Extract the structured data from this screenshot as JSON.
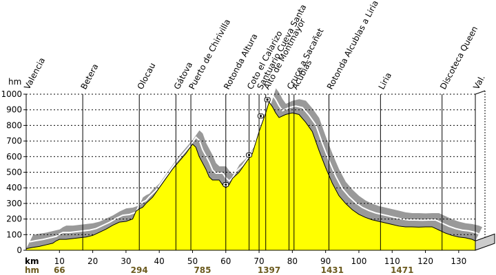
{
  "chart_data": {
    "type": "area",
    "title": "",
    "y_unit": "hm",
    "x_unit": "km",
    "hm_row_label": "hm",
    "ylim": [
      0,
      1000
    ],
    "xlim": [
      0,
      135
    ],
    "y_ticks": [
      0,
      100,
      200,
      300,
      400,
      500,
      600,
      700,
      800,
      900,
      1000
    ],
    "x_ticks": [
      10,
      20,
      30,
      40,
      50,
      60,
      70,
      80,
      90,
      100,
      110,
      120,
      130
    ],
    "grid": true,
    "colors": {
      "fill": "#ffff00",
      "shadow": "#999999",
      "highlight": "#ffffff",
      "line": "#000000",
      "hm_text": "#6b5a1e"
    },
    "profile": [
      [
        0,
        10
      ],
      [
        2,
        18
      ],
      [
        4,
        25
      ],
      [
        6,
        35
      ],
      [
        8,
        45
      ],
      [
        9,
        60
      ],
      [
        10,
        70
      ],
      [
        12,
        70
      ],
      [
        14,
        75
      ],
      [
        16,
        80
      ],
      [
        18,
        85
      ],
      [
        20,
        95
      ],
      [
        22,
        115
      ],
      [
        24,
        135
      ],
      [
        26,
        160
      ],
      [
        28,
        180
      ],
      [
        30,
        185
      ],
      [
        32,
        200
      ],
      [
        33,
        250
      ],
      [
        34,
        265
      ],
      [
        35,
        275
      ],
      [
        36,
        300
      ],
      [
        38,
        340
      ],
      [
        40,
        400
      ],
      [
        42,
        460
      ],
      [
        44,
        520
      ],
      [
        46,
        570
      ],
      [
        48,
        620
      ],
      [
        50,
        680
      ],
      [
        51,
        660
      ],
      [
        52,
        600
      ],
      [
        54,
        520
      ],
      [
        55,
        470
      ],
      [
        56,
        450
      ],
      [
        58,
        450
      ],
      [
        59,
        420
      ],
      [
        60,
        400
      ],
      [
        61,
        420
      ],
      [
        62,
        460
      ],
      [
        64,
        500
      ],
      [
        66,
        560
      ],
      [
        67,
        590
      ],
      [
        68,
        620
      ],
      [
        70,
        760
      ],
      [
        72,
        880
      ],
      [
        73,
        950
      ],
      [
        74,
        920
      ],
      [
        75,
        880
      ],
      [
        76,
        850
      ],
      [
        78,
        870
      ],
      [
        80,
        880
      ],
      [
        82,
        870
      ],
      [
        84,
        820
      ],
      [
        86,
        760
      ],
      [
        88,
        640
      ],
      [
        90,
        530
      ],
      [
        92,
        430
      ],
      [
        94,
        350
      ],
      [
        96,
        300
      ],
      [
        98,
        260
      ],
      [
        100,
        230
      ],
      [
        102,
        210
      ],
      [
        104,
        195
      ],
      [
        106,
        185
      ],
      [
        108,
        175
      ],
      [
        110,
        165
      ],
      [
        112,
        155
      ],
      [
        114,
        150
      ],
      [
        116,
        150
      ],
      [
        118,
        148
      ],
      [
        120,
        150
      ],
      [
        122,
        150
      ],
      [
        124,
        130
      ],
      [
        126,
        110
      ],
      [
        128,
        95
      ],
      [
        130,
        85
      ],
      [
        132,
        80
      ],
      [
        134,
        70
      ],
      [
        135,
        60
      ]
    ],
    "waypoints": [
      {
        "km": 0,
        "name": "Valencia"
      },
      {
        "km": 17,
        "name": "Betera"
      },
      {
        "km": 34,
        "name": "Olocau"
      },
      {
        "km": 45,
        "name": "Gátova"
      },
      {
        "km": 49.5,
        "name": "Puerto de Chirivilla"
      },
      {
        "km": 60,
        "name": "Rotonda Altura"
      },
      {
        "km": 67,
        "name": "Coto el Calarizo"
      },
      {
        "km": 70,
        "name": "Santuario Cueva Santa"
      },
      {
        "km": 72,
        "name": "Alto de Montmayor"
      },
      {
        "km": 79,
        "name": "Cruce a Sacañet"
      },
      {
        "km": 80.5,
        "name": "Acubias"
      },
      {
        "km": 91,
        "name": "Rotonda Alcublas a Liria"
      },
      {
        "km": 106.5,
        "name": "Liria"
      },
      {
        "km": 125,
        "name": "Discoteca Queen"
      },
      {
        "km": 135,
        "name": "Val."
      }
    ],
    "hm_values": [
      {
        "km": 10,
        "value": "66"
      },
      {
        "km": 34,
        "value": "294"
      },
      {
        "km": 53,
        "value": "785"
      },
      {
        "km": 73,
        "value": "1397"
      },
      {
        "km": 92,
        "value": "1431"
      },
      {
        "km": 113,
        "value": "1471"
      }
    ],
    "markers": [
      {
        "km": 60,
        "alt": 420
      },
      {
        "km": 67,
        "alt": 610
      },
      {
        "km": 70.5,
        "alt": 860
      },
      {
        "km": 72.5,
        "alt": 965
      }
    ]
  }
}
